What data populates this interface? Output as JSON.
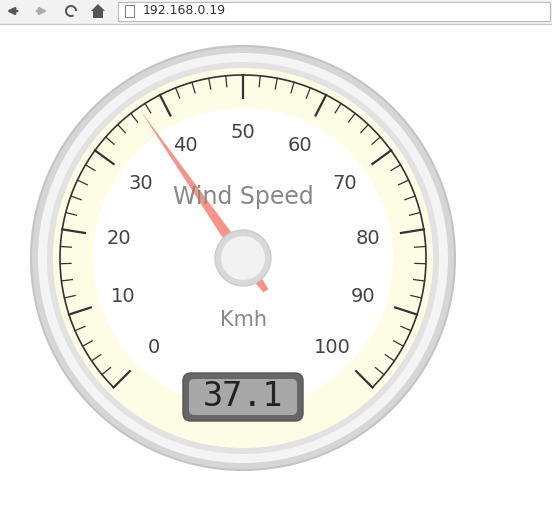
{
  "chart_data": {
    "type": "gauge",
    "title": "Wind Speed",
    "subtitle": "Kmh",
    "values": [
      37.1
    ],
    "color": "#f4897b",
    "ylim": [
      0,
      100
    ],
    "yticks": [
      0,
      10,
      20,
      30,
      40,
      50,
      60,
      70,
      80,
      90,
      100
    ],
    "annotations": [
      "192.168.0.19"
    ]
  }
}
